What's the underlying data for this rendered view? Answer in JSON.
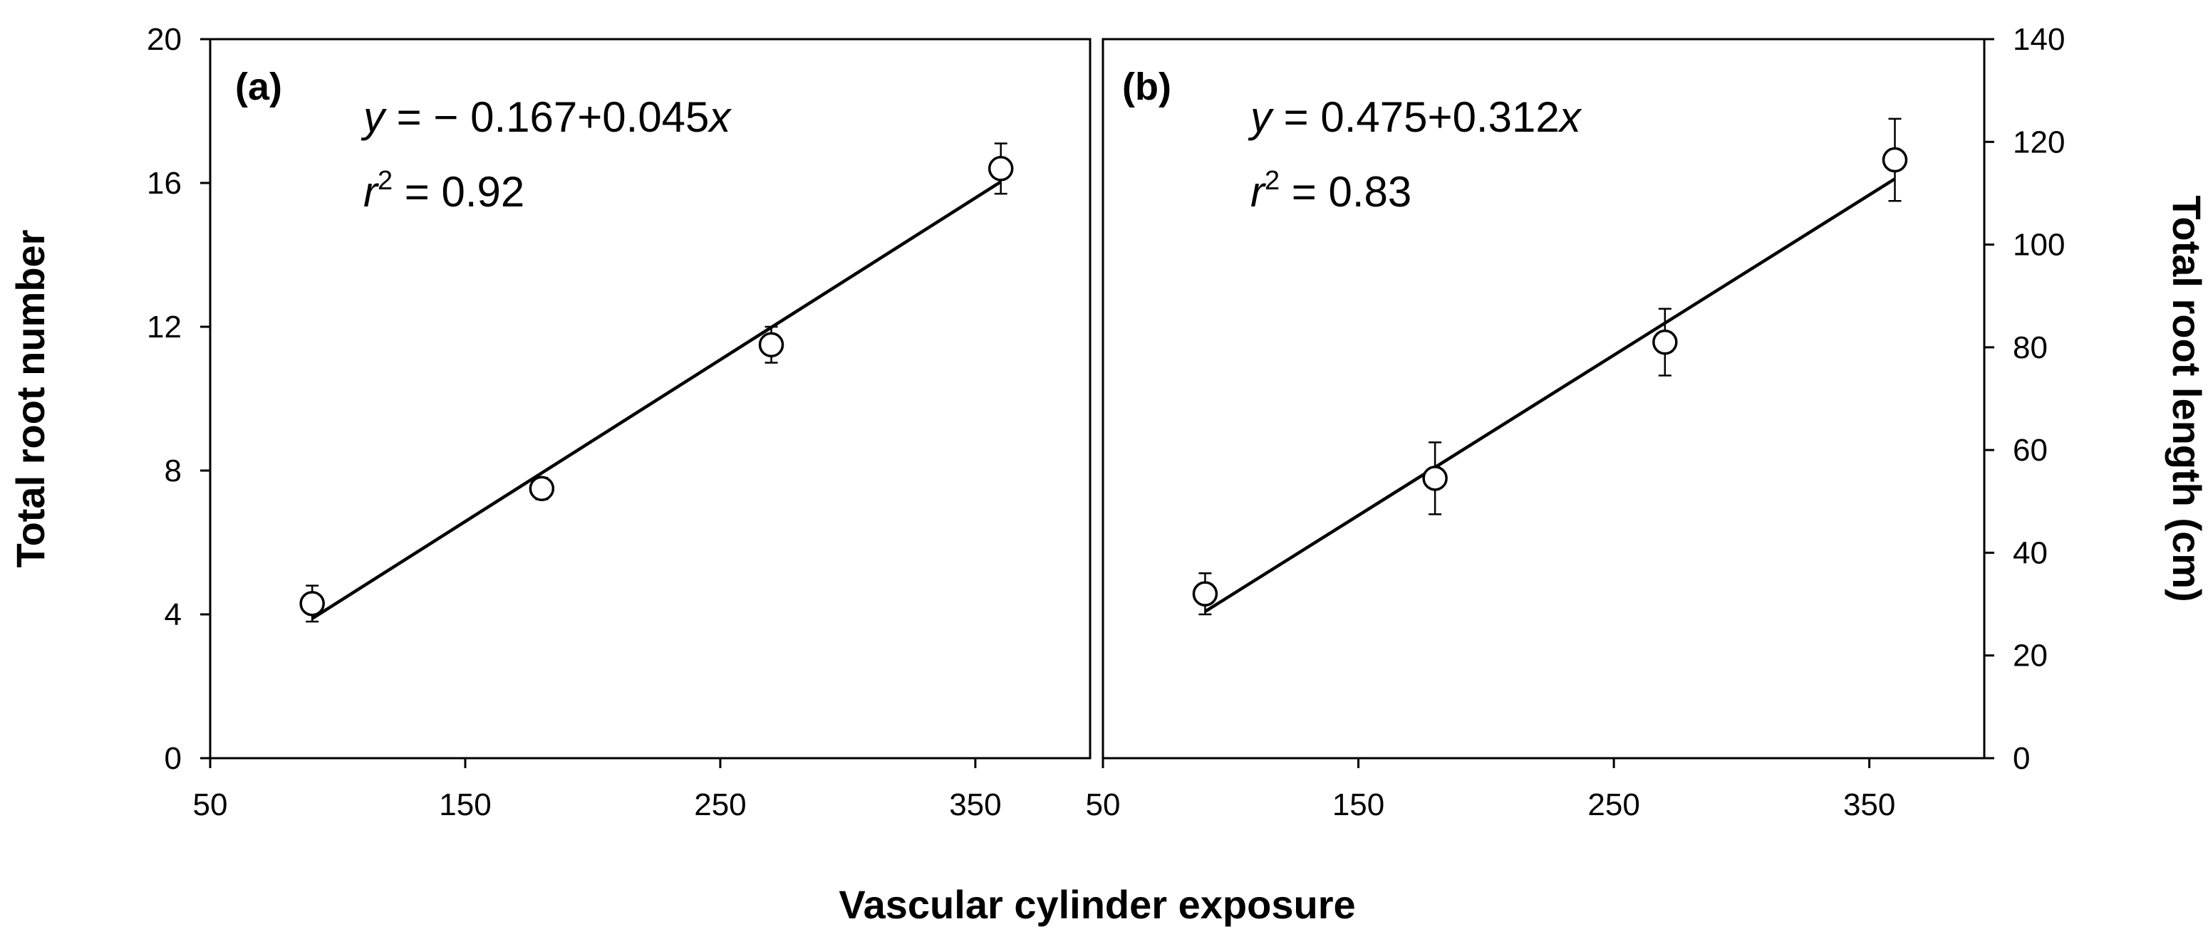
{
  "chart_data": [
    {
      "type": "scatter",
      "panel_label": "(a)",
      "equation": {
        "y_italic": "y",
        "rhs": " = − 0.167+0.045",
        "x_italic": "x"
      },
      "r2": {
        "r_italic": "r",
        "sup": "2",
        "rhs": " = 0.92"
      },
      "ylabel": "Total root number",
      "xlim": [
        50,
        395
      ],
      "ylim": [
        0,
        20
      ],
      "x_ticks": [
        "50",
        "150",
        "250",
        "350"
      ],
      "y_ticks": [
        "0",
        "4",
        "8",
        "12",
        "16",
        "20"
      ],
      "fit": {
        "intercept": -0.167,
        "slope": 0.045,
        "x_range": [
          90,
          360
        ]
      },
      "points": [
        {
          "x": 90,
          "y": 4.3,
          "err": 0.5
        },
        {
          "x": 180,
          "y": 7.5,
          "err": 0.3
        },
        {
          "x": 270,
          "y": 11.5,
          "err": 0.5
        },
        {
          "x": 360,
          "y": 16.4,
          "err": 0.7
        }
      ]
    },
    {
      "type": "scatter",
      "panel_label": "(b)",
      "equation": {
        "y_italic": "y",
        "rhs": " = 0.475+0.312",
        "x_italic": "x"
      },
      "r2": {
        "r_italic": "r",
        "sup": "2",
        "rhs": " = 0.83"
      },
      "ylabel": "Total root length (cm)",
      "xlim": [
        50,
        395
      ],
      "ylim": [
        0,
        140
      ],
      "x_ticks": [
        "50",
        "150",
        "250",
        "350"
      ],
      "y_ticks": [
        "0",
        "20",
        "40",
        "60",
        "80",
        "100",
        "120",
        "140"
      ],
      "fit": {
        "intercept": 0.475,
        "slope": 0.312,
        "x_range": [
          90,
          360
        ]
      },
      "points": [
        {
          "x": 90,
          "y": 32,
          "err": 4
        },
        {
          "x": 180,
          "y": 54.5,
          "err": 7
        },
        {
          "x": 270,
          "y": 81,
          "err": 6.5
        },
        {
          "x": 360,
          "y": 116.5,
          "err": 8
        }
      ]
    }
  ],
  "xlabel": "Vascular cylinder exposure"
}
